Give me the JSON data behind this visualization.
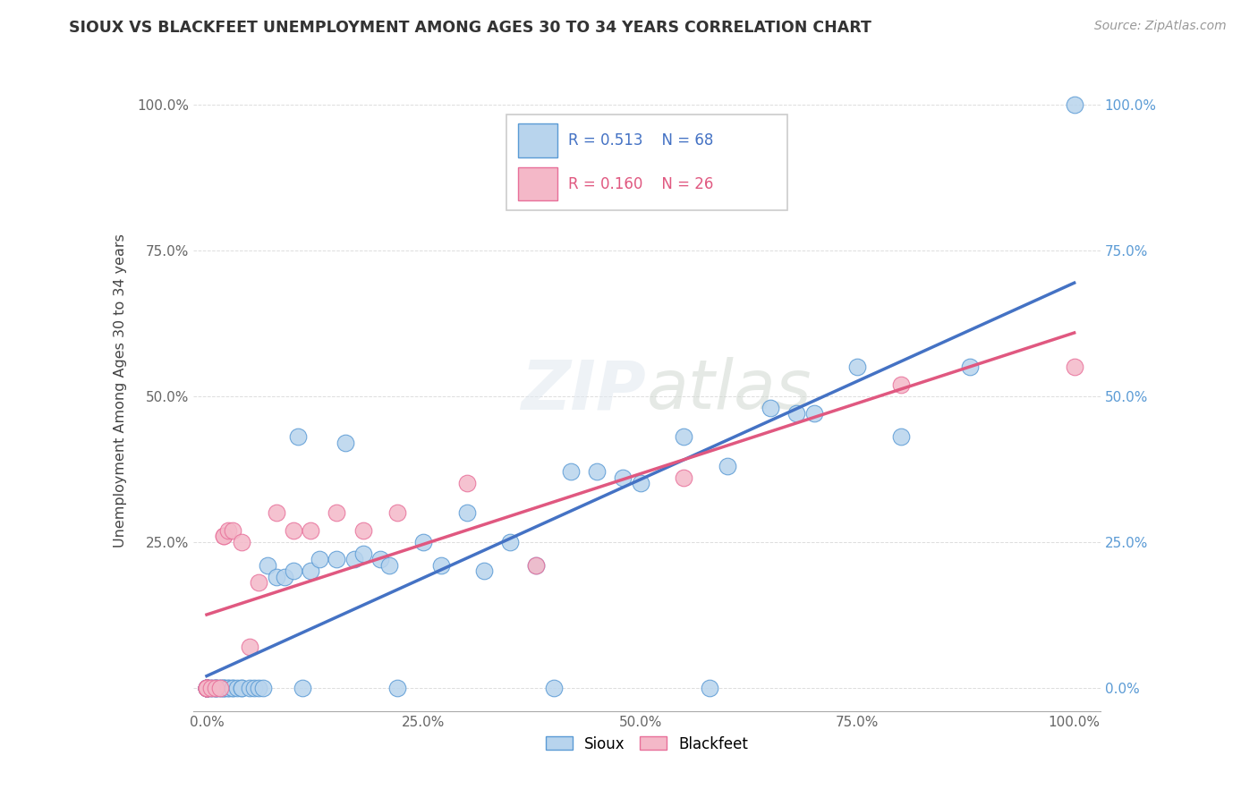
{
  "title": "SIOUX VS BLACKFEET UNEMPLOYMENT AMONG AGES 30 TO 34 YEARS CORRELATION CHART",
  "source": "Source: ZipAtlas.com",
  "ylabel": "Unemployment Among Ages 30 to 34 years",
  "sioux_face_color": "#b8d4ed",
  "sioux_edge_color": "#5b9bd5",
  "blackfeet_face_color": "#f4b8c8",
  "blackfeet_edge_color": "#e8709a",
  "sioux_line_color": "#4472c4",
  "blackfeet_line_color": "#e05880",
  "sioux_R": 0.513,
  "sioux_N": 68,
  "blackfeet_R": 0.16,
  "blackfeet_N": 26,
  "background_color": "#ffffff",
  "grid_color": "#dddddd",
  "tick_color_left": "#555555",
  "tick_color_right": "#5b9bd5",
  "sioux_x": [
    0.0,
    0.0,
    0.0,
    0.0,
    0.0,
    0.0,
    0.0,
    0.0,
    0.0,
    0.0,
    0.005,
    0.005,
    0.01,
    0.01,
    0.01,
    0.01,
    0.015,
    0.015,
    0.02,
    0.02,
    0.02,
    0.025,
    0.025,
    0.03,
    0.03,
    0.035,
    0.04,
    0.04,
    0.05,
    0.055,
    0.06,
    0.065,
    0.07,
    0.08,
    0.09,
    0.1,
    0.105,
    0.11,
    0.12,
    0.13,
    0.15,
    0.16,
    0.17,
    0.18,
    0.2,
    0.21,
    0.22,
    0.25,
    0.27,
    0.3,
    0.32,
    0.35,
    0.38,
    0.4,
    0.42,
    0.45,
    0.48,
    0.5,
    0.55,
    0.58,
    0.6,
    0.65,
    0.68,
    0.7,
    0.75,
    0.8,
    0.88,
    1.0
  ],
  "sioux_y": [
    0.0,
    0.0,
    0.0,
    0.0,
    0.0,
    0.0,
    0.0,
    0.0,
    0.0,
    0.0,
    0.0,
    0.0,
    0.0,
    0.0,
    0.0,
    0.0,
    0.0,
    0.0,
    0.0,
    0.0,
    0.0,
    0.0,
    0.0,
    0.0,
    0.0,
    0.0,
    0.0,
    0.0,
    0.0,
    0.0,
    0.0,
    0.0,
    0.21,
    0.19,
    0.19,
    0.2,
    0.43,
    0.0,
    0.2,
    0.22,
    0.22,
    0.42,
    0.22,
    0.23,
    0.22,
    0.21,
    0.0,
    0.25,
    0.21,
    0.3,
    0.2,
    0.25,
    0.21,
    0.0,
    0.37,
    0.37,
    0.36,
    0.35,
    0.43,
    0.0,
    0.38,
    0.48,
    0.47,
    0.47,
    0.55,
    0.43,
    0.55,
    1.0
  ],
  "blackfeet_x": [
    0.0,
    0.0,
    0.0,
    0.0,
    0.0,
    0.005,
    0.01,
    0.015,
    0.02,
    0.02,
    0.025,
    0.03,
    0.04,
    0.05,
    0.06,
    0.08,
    0.1,
    0.12,
    0.15,
    0.18,
    0.22,
    0.3,
    0.38,
    0.55,
    0.8,
    1.0
  ],
  "blackfeet_y": [
    0.0,
    0.0,
    0.0,
    0.0,
    0.0,
    0.0,
    0.0,
    0.0,
    0.26,
    0.26,
    0.27,
    0.27,
    0.25,
    0.07,
    0.18,
    0.3,
    0.27,
    0.27,
    0.3,
    0.27,
    0.3,
    0.35,
    0.21,
    0.36,
    0.52,
    0.55
  ],
  "sioux_trendline_x0": 0.0,
  "sioux_trendline_x1": 1.0,
  "blackfeet_trendline_x0": 0.0,
  "blackfeet_trendline_x1": 1.0,
  "xtick_vals": [
    0.0,
    0.25,
    0.5,
    0.75,
    1.0
  ],
  "xtick_labels": [
    "0.0%",
    "25.0%",
    "50.0%",
    "75.0%",
    "100.0%"
  ],
  "ytick_vals": [
    0.0,
    0.25,
    0.5,
    0.75,
    1.0
  ],
  "ytick_labels_left": [
    "",
    "25.0%",
    "50.0%",
    "75.0%",
    "100.0%"
  ],
  "ytick_labels_right": [
    "0.0%",
    "25.0%",
    "50.0%",
    "75.0%",
    "100.0%"
  ]
}
